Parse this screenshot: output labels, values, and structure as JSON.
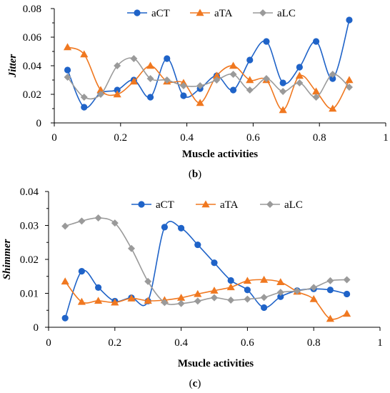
{
  "chart_data": [
    {
      "type": "line",
      "panel_caption": {
        "open": "(",
        "letter": "b",
        "close": ")"
      },
      "xlabel": "Muscle activities",
      "ylabel": "Jitter",
      "xlim": [
        0,
        1
      ],
      "ylim": [
        0,
        0.08
      ],
      "x_ticks": [
        "0",
        "0.2",
        "0.4",
        "0.6",
        "0.8",
        "1"
      ],
      "y_ticks": [
        "0",
        "0.02",
        "0.04",
        "0.06",
        "0.08"
      ],
      "grid": false,
      "legend": "top-center",
      "smooth": true,
      "series": [
        {
          "name": "aCT",
          "color": "#1f63c8",
          "marker": "circle",
          "x": [
            0.04,
            0.09,
            0.14,
            0.19,
            0.24,
            0.29,
            0.34,
            0.39,
            0.44,
            0.49,
            0.54,
            0.59,
            0.64,
            0.69,
            0.74,
            0.79,
            0.84,
            0.89
          ],
          "y": [
            0.037,
            0.011,
            0.021,
            0.023,
            0.03,
            0.018,
            0.045,
            0.019,
            0.024,
            0.033,
            0.023,
            0.044,
            0.057,
            0.028,
            0.039,
            0.057,
            0.031,
            0.072
          ]
        },
        {
          "name": "aTA",
          "color": "#f07820",
          "marker": "triangle",
          "x": [
            0.04,
            0.09,
            0.14,
            0.19,
            0.24,
            0.29,
            0.34,
            0.39,
            0.44,
            0.49,
            0.54,
            0.59,
            0.64,
            0.69,
            0.74,
            0.79,
            0.84,
            0.89
          ],
          "y": [
            0.053,
            0.048,
            0.023,
            0.02,
            0.029,
            0.04,
            0.029,
            0.028,
            0.014,
            0.033,
            0.04,
            0.03,
            0.03,
            0.009,
            0.033,
            0.022,
            0.01,
            0.03
          ]
        },
        {
          "name": "aLC",
          "color": "#9a9a9a",
          "marker": "diamond",
          "x": [
            0.04,
            0.09,
            0.14,
            0.19,
            0.24,
            0.29,
            0.34,
            0.39,
            0.44,
            0.49,
            0.54,
            0.59,
            0.64,
            0.69,
            0.74,
            0.79,
            0.84,
            0.89
          ],
          "y": [
            0.032,
            0.018,
            0.02,
            0.04,
            0.045,
            0.031,
            0.03,
            0.026,
            0.026,
            0.03,
            0.034,
            0.023,
            0.031,
            0.022,
            0.028,
            0.018,
            0.034,
            0.025
          ]
        }
      ]
    },
    {
      "type": "line",
      "panel_caption": {
        "open": "(",
        "letter": "c",
        "close": ")"
      },
      "xlabel": "Msucle activities",
      "ylabel": "Shimmer",
      "xlim": [
        0,
        1
      ],
      "ylim": [
        0,
        0.04
      ],
      "x_ticks": [
        "0",
        "0.2",
        "0.4",
        "0.6",
        "0.8",
        "1"
      ],
      "y_ticks": [
        "0",
        "0.01",
        "0.02",
        "0.03",
        "0.04"
      ],
      "grid": false,
      "legend": "top-right",
      "smooth": true,
      "series": [
        {
          "name": "aCT",
          "color": "#1f63c8",
          "marker": "circle",
          "x": [
            0.05,
            0.1,
            0.15,
            0.2,
            0.25,
            0.3,
            0.35,
            0.4,
            0.45,
            0.5,
            0.55,
            0.6,
            0.65,
            0.7,
            0.75,
            0.8,
            0.85,
            0.9
          ],
          "y": [
            0.0027,
            0.0165,
            0.0117,
            0.0077,
            0.0087,
            0.0077,
            0.0295,
            0.0292,
            0.0243,
            0.019,
            0.0138,
            0.011,
            0.0058,
            0.009,
            0.0108,
            0.0113,
            0.011,
            0.0098
          ]
        },
        {
          "name": "aTA",
          "color": "#f07820",
          "marker": "triangle",
          "x": [
            0.05,
            0.1,
            0.15,
            0.2,
            0.25,
            0.3,
            0.35,
            0.4,
            0.45,
            0.5,
            0.55,
            0.6,
            0.65,
            0.7,
            0.75,
            0.8,
            0.85,
            0.9
          ],
          "y": [
            0.0135,
            0.0075,
            0.0078,
            0.0073,
            0.0085,
            0.0078,
            0.008,
            0.0087,
            0.0098,
            0.0108,
            0.0118,
            0.0137,
            0.014,
            0.0133,
            0.0105,
            0.0083,
            0.0025,
            0.004
          ]
        },
        {
          "name": "aLC",
          "color": "#9a9a9a",
          "marker": "diamond",
          "x": [
            0.05,
            0.1,
            0.15,
            0.2,
            0.25,
            0.3,
            0.35,
            0.4,
            0.45,
            0.5,
            0.55,
            0.6,
            0.65,
            0.7,
            0.75,
            0.8,
            0.85,
            0.9
          ],
          "y": [
            0.0298,
            0.0313,
            0.0322,
            0.0307,
            0.0232,
            0.0135,
            0.0073,
            0.007,
            0.0077,
            0.0087,
            0.008,
            0.0083,
            0.0088,
            0.0103,
            0.0107,
            0.0117,
            0.0137,
            0.014
          ]
        }
      ]
    }
  ]
}
